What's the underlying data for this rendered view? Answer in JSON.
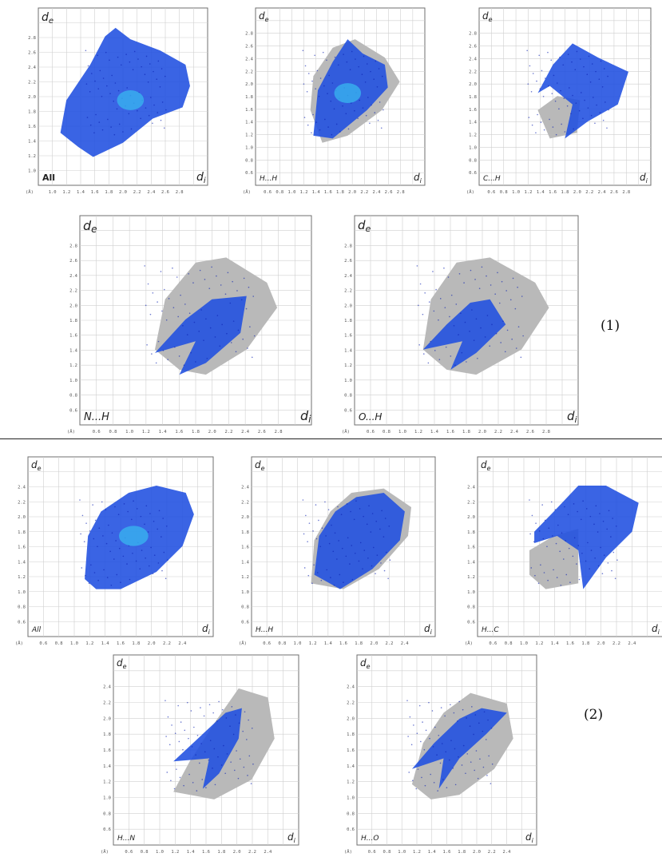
{
  "figure": {
    "group_labels": [
      "(1)",
      "(2)"
    ],
    "unit_label": "(Å)",
    "y_axis_symbol": "d",
    "y_axis_sub": "e",
    "x_axis_symbol": "d",
    "x_axis_sub": "i"
  },
  "chart_data": [
    {
      "type": "scatter",
      "group": "(1)",
      "contact": "All",
      "bold": true,
      "fingerprint": "full",
      "yticks": [
        "1.0",
        "1.2",
        "1.4",
        "1.6",
        "1.8",
        "2.0",
        "2.2",
        "2.4",
        "2.6",
        "2.8"
      ],
      "xticks": [
        "1.0",
        "1.2",
        "1.4",
        "1.6",
        "1.8",
        "2.0",
        "2.2",
        "2.4",
        "2.6",
        "2.8"
      ],
      "xlim": [
        0.8,
        2.8
      ],
      "ylim": [
        0.9,
        2.9
      ]
    },
    {
      "type": "scatter",
      "group": "(1)",
      "contact": "H...H",
      "fingerprint": "hh",
      "yticks": [
        "0.6",
        "0.8",
        "1.0",
        "1.2",
        "1.4",
        "1.6",
        "1.8",
        "2.0",
        "2.2",
        "2.4",
        "2.6",
        "2.8"
      ],
      "xticks": [
        "0.6",
        "0.8",
        "1.0",
        "1.2",
        "1.4",
        "1.6",
        "1.8",
        "2.0",
        "2.2",
        "2.4",
        "2.6",
        "2.8"
      ],
      "xlim": [
        0.4,
        2.8
      ],
      "ylim": [
        0.4,
        2.9
      ]
    },
    {
      "type": "scatter",
      "group": "(1)",
      "contact": "C...H",
      "fingerprint": "ch",
      "yticks": [
        "0.6",
        "0.8",
        "1.0",
        "1.2",
        "1.4",
        "1.6",
        "1.8",
        "2.0",
        "2.2",
        "2.4",
        "2.6",
        "2.8"
      ],
      "xticks": [
        "0.6",
        "0.8",
        "1.0",
        "1.2",
        "1.4",
        "1.6",
        "1.8",
        "2.0",
        "2.2",
        "2.4",
        "2.6",
        "2.8"
      ],
      "xlim": [
        0.4,
        2.8
      ],
      "ylim": [
        0.4,
        2.9
      ]
    },
    {
      "type": "scatter",
      "group": "(1)",
      "contact": "N...H",
      "fingerprint": "nh",
      "yticks": [
        "0.6",
        "0.8",
        "1.0",
        "1.2",
        "1.4",
        "1.6",
        "1.8",
        "2.0",
        "2.2",
        "2.4",
        "2.6",
        "2.8"
      ],
      "xticks": [
        "0.6",
        "0.8",
        "1.0",
        "1.2",
        "1.4",
        "1.6",
        "1.8",
        "2.0",
        "2.2",
        "2.4",
        "2.6",
        "2.8"
      ],
      "xlim": [
        0.4,
        2.8
      ],
      "ylim": [
        0.4,
        2.9
      ]
    },
    {
      "type": "scatter",
      "group": "(1)",
      "contact": "O...H",
      "fingerprint": "oh",
      "yticks": [
        "0.6",
        "0.8",
        "1.0",
        "1.2",
        "1.4",
        "1.6",
        "1.8",
        "2.0",
        "2.2",
        "2.4",
        "2.6",
        "2.8"
      ],
      "xticks": [
        "0.6",
        "0.8",
        "1.0",
        "1.2",
        "1.4",
        "1.6",
        "1.8",
        "2.0",
        "2.2",
        "2.4",
        "2.6",
        "2.8"
      ],
      "xlim": [
        0.4,
        2.8
      ],
      "ylim": [
        0.4,
        2.9
      ]
    },
    {
      "type": "scatter",
      "group": "(2)",
      "contact": "All",
      "fingerprint": "full2",
      "yticks": [
        "0.6",
        "0.8",
        "1.0",
        "1.2",
        "1.4",
        "1.6",
        "1.8",
        "2.0",
        "2.2",
        "2.4"
      ],
      "xticks": [
        "0.6",
        "0.8",
        "1.0",
        "1.2",
        "1.4",
        "1.6",
        "1.8",
        "2.0",
        "2.2",
        "2.4"
      ],
      "xlim": [
        0.4,
        2.6
      ],
      "ylim": [
        0.4,
        2.6
      ]
    },
    {
      "type": "scatter",
      "group": "(2)",
      "contact": "H...H",
      "fingerprint": "hh2",
      "yticks": [
        "0.6",
        "0.8",
        "1.0",
        "1.2",
        "1.4",
        "1.6",
        "1.8",
        "2.0",
        "2.2",
        "2.4"
      ],
      "xticks": [
        "0.6",
        "0.8",
        "1.0",
        "1.2",
        "1.4",
        "1.6",
        "1.8",
        "2.0",
        "2.2",
        "2.4"
      ],
      "xlim": [
        0.4,
        2.6
      ],
      "ylim": [
        0.4,
        2.6
      ]
    },
    {
      "type": "scatter",
      "group": "(2)",
      "contact": "H...C",
      "fingerprint": "hc2",
      "yticks": [
        "0.6",
        "0.8",
        "1.0",
        "1.2",
        "1.4",
        "1.6",
        "1.8",
        "2.0",
        "2.2",
        "2.4"
      ],
      "xticks": [
        "0.6",
        "0.8",
        "1.0",
        "1.2",
        "1.4",
        "1.6",
        "1.8",
        "2.0",
        "2.2",
        "2.4"
      ],
      "xlim": [
        0.4,
        2.6
      ],
      "ylim": [
        0.4,
        2.6
      ]
    },
    {
      "type": "scatter",
      "group": "(2)",
      "contact": "H...N",
      "fingerprint": "hn2",
      "yticks": [
        "0.6",
        "0.8",
        "1.0",
        "1.2",
        "1.4",
        "1.6",
        "1.8",
        "2.0",
        "2.2",
        "2.4"
      ],
      "xticks": [
        "0.6",
        "0.8",
        "1.0",
        "1.2",
        "1.4",
        "1.6",
        "1.8",
        "2.0",
        "2.2",
        "2.4"
      ],
      "xlim": [
        0.4,
        2.6
      ],
      "ylim": [
        0.4,
        2.6
      ]
    },
    {
      "type": "scatter",
      "group": "(2)",
      "contact": "H...O",
      "fingerprint": "ho2",
      "yticks": [
        "0.6",
        "0.8",
        "1.0",
        "1.2",
        "1.4",
        "1.6",
        "1.8",
        "2.0",
        "2.2",
        "2.4"
      ],
      "xticks": [
        "0.6",
        "0.8",
        "1.0",
        "1.2",
        "1.4",
        "1.6",
        "1.8",
        "2.0",
        "2.2",
        "2.4"
      ],
      "xlim": [
        0.4,
        2.6
      ],
      "ylim": [
        0.4,
        2.6
      ]
    }
  ]
}
